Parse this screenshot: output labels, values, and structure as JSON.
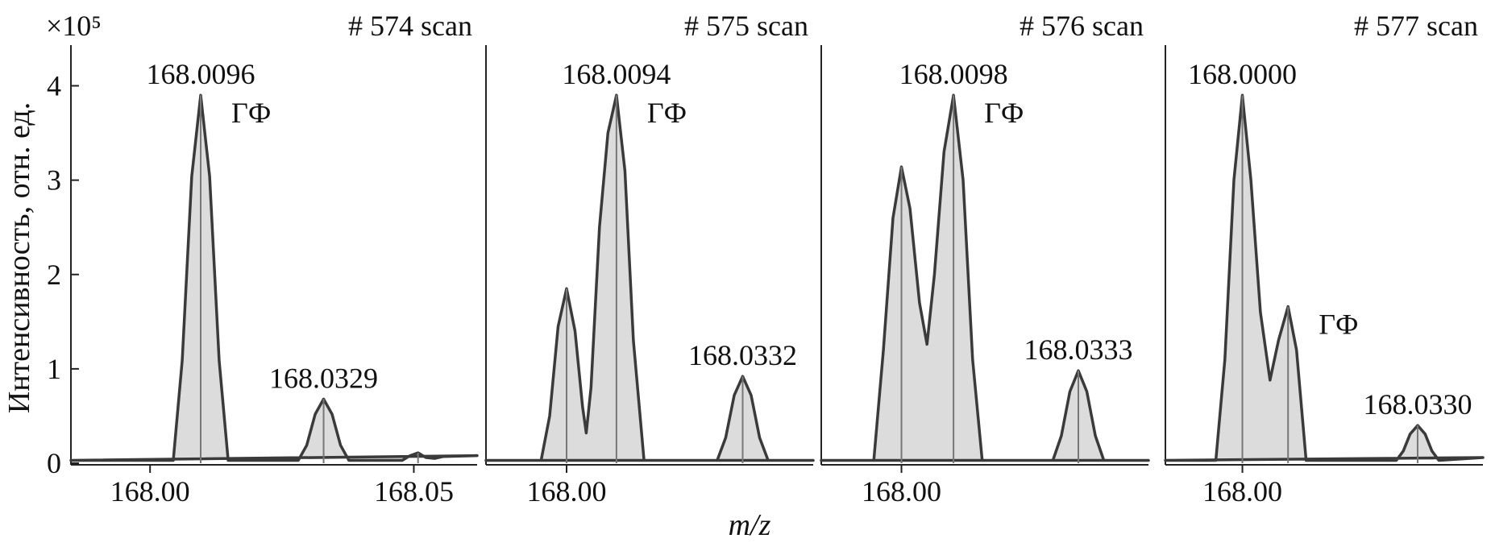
{
  "y_label": "Интенсивность, отн. ед.",
  "x_label": "m/z",
  "y_scale_label": "×10⁵",
  "chart_data": [
    {
      "type": "line",
      "title": "# 574 scan",
      "xlim": [
        167.985,
        168.062
      ],
      "ylim": [
        0,
        4.38
      ],
      "xticks": [
        {
          "value": 168.0,
          "label": "168.00"
        },
        {
          "value": 168.05,
          "label": "168.05"
        }
      ],
      "yticks": [
        0,
        1,
        2,
        3,
        4
      ],
      "x": [
        167.985,
        168.0044,
        168.0061,
        168.0079,
        168.0096,
        168.0113,
        168.0131,
        168.0148,
        168.0281,
        168.0297,
        168.0313,
        168.0329,
        168.0345,
        168.0361,
        168.0377,
        168.0478,
        168.0493,
        168.0508,
        168.0523,
        168.054,
        168.0555,
        168.062
      ],
      "y": [
        0.03,
        0.03,
        1.09,
        3.04,
        3.9,
        3.04,
        1.09,
        0.03,
        0.03,
        0.19,
        0.52,
        0.68,
        0.52,
        0.19,
        0.03,
        0.03,
        0.08,
        0.11,
        0.06,
        0.05,
        0.07,
        0.08
      ],
      "peaks": {
        "x": [
          168.0096,
          168.0329,
          168.0508
        ],
        "values": [
          3.9,
          0.68,
          0.11
        ],
        "x_labels": [
          "168.0096",
          "168.0329",
          null
        ],
        "names": [
          "ГФ",
          null,
          null
        ]
      }
    },
    {
      "type": "line",
      "title": "# 575 scan",
      "xlim": [
        167.9848,
        168.0465
      ],
      "ylim": [
        0,
        4.38
      ],
      "xticks": [
        {
          "value": 168.0,
          "label": "168.00"
        }
      ],
      "x": [
        167.9848,
        167.9952,
        167.9968,
        167.9984,
        168.0,
        168.0016,
        168.003,
        168.0037,
        168.0046,
        168.0062,
        168.0078,
        168.0094,
        168.011,
        168.0126,
        168.0146,
        168.0284,
        168.03,
        168.0316,
        168.0332,
        168.0348,
        168.0364,
        168.038,
        168.0465
      ],
      "y": [
        0.03,
        0.03,
        0.5,
        1.45,
        1.85,
        1.4,
        0.6,
        0.32,
        0.8,
        2.5,
        3.5,
        3.9,
        3.1,
        1.3,
        0.03,
        0.03,
        0.27,
        0.72,
        0.92,
        0.72,
        0.27,
        0.03,
        0.03
      ],
      "peaks": {
        "x": [
          168.0,
          168.0094,
          168.0332
        ],
        "values": [
          1.85,
          3.9,
          0.92
        ],
        "x_labels": [
          null,
          "168.0094",
          "168.0332"
        ],
        "names": [
          null,
          "ГФ",
          null
        ]
      }
    },
    {
      "type": "line",
      "title": "# 576 scan",
      "xlim": [
        167.9849,
        168.0465
      ],
      "ylim": [
        0,
        4.38
      ],
      "xticks": [
        {
          "value": 168.0,
          "label": "168.00"
        }
      ],
      "x": [
        167.9849,
        167.9948,
        167.9966,
        167.9984,
        168.0,
        168.0016,
        168.0034,
        168.0048,
        168.0062,
        168.008,
        168.0098,
        168.0116,
        168.0134,
        168.0152,
        168.0285,
        168.0301,
        168.0317,
        168.0333,
        168.0349,
        168.0365,
        168.0381,
        168.0465
      ],
      "y": [
        0.03,
        0.03,
        1.2,
        2.6,
        3.14,
        2.7,
        1.7,
        1.26,
        2.0,
        3.3,
        3.9,
        3.0,
        1.1,
        0.03,
        0.03,
        0.29,
        0.76,
        0.98,
        0.76,
        0.29,
        0.03,
        0.03
      ],
      "peaks": {
        "x": [
          168.0,
          168.0098,
          168.0333
        ],
        "values": [
          3.14,
          3.9,
          0.98
        ],
        "x_labels": [
          null,
          "168.0098",
          "168.0333"
        ],
        "names": [
          null,
          "ГФ",
          null
        ]
      }
    },
    {
      "type": "line",
      "title": "# 577 scan",
      "xlim": [
        167.9855,
        168.0453
      ],
      "ylim": [
        0,
        4.38
      ],
      "xticks": [
        {
          "value": 168.0,
          "label": "168.00"
        }
      ],
      "x": [
        167.9855,
        167.995,
        167.9967,
        167.9984,
        168.0,
        168.0016,
        168.0034,
        168.0052,
        168.0068,
        168.0086,
        168.0102,
        168.012,
        168.029,
        168.0303,
        168.0316,
        168.033,
        168.0344,
        168.0357,
        168.037,
        168.0453
      ],
      "y": [
        0.03,
        0.03,
        1.1,
        3.0,
        3.9,
        3.0,
        1.6,
        0.88,
        1.3,
        1.66,
        1.2,
        0.03,
        0.03,
        0.13,
        0.31,
        0.4,
        0.31,
        0.13,
        0.03,
        0.06
      ],
      "peaks": {
        "x": [
          168.0,
          168.0086,
          168.033
        ],
        "values": [
          3.9,
          1.66,
          0.4
        ],
        "x_labels": [
          "168.0000",
          null,
          "168.0330"
        ],
        "names": [
          null,
          "ГФ",
          null
        ]
      }
    }
  ]
}
